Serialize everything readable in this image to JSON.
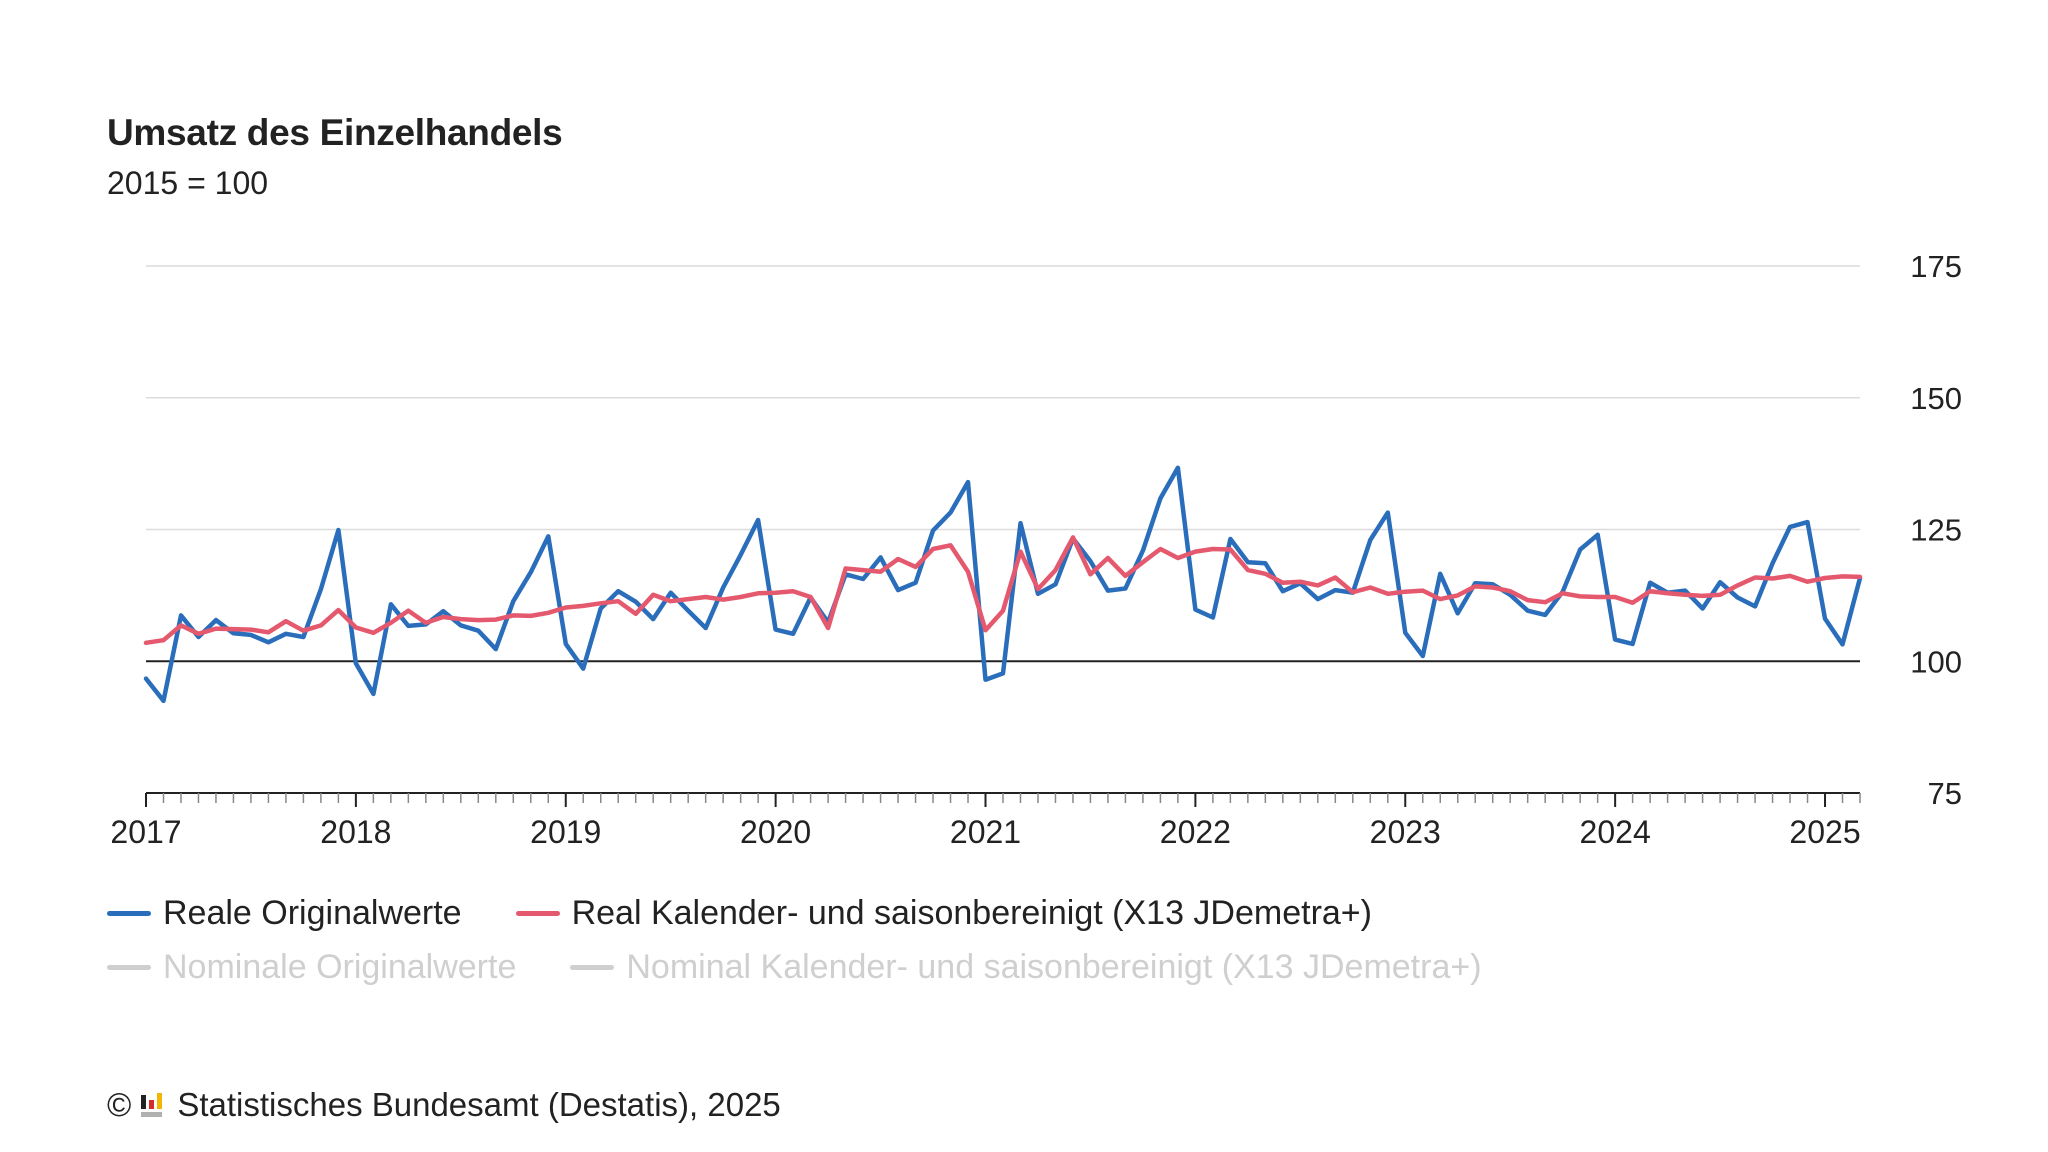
{
  "title": "Umsatz des Einzelhandels",
  "subtitle": "2015 = 100",
  "legend": {
    "items": [
      {
        "label": "Reale Originalwerte",
        "color": "#2a6ebb",
        "active": true
      },
      {
        "label": "Real Kalender- und saisonbereinigt (X13 JDemetra+)",
        "color": "#e5596e",
        "active": true
      },
      {
        "label": "Nominale Originalwerte",
        "color": "#cfcfcf",
        "active": false
      },
      {
        "label": "Nominal Kalender- und saisonbereinigt (X13 JDemetra+)",
        "color": "#cfcfcf",
        "active": false
      }
    ]
  },
  "footer": {
    "copyright": "©",
    "source": "Statistisches Bundesamt (Destatis), 2025",
    "logo_icon": "destatis-logo-icon"
  },
  "chart_data": {
    "type": "line",
    "x_start": "2017-01",
    "x_end": "2025-03",
    "frequency": "monthly",
    "x_tick_labels": [
      "2017",
      "2018",
      "2019",
      "2020",
      "2021",
      "2022",
      "2023",
      "2024",
      "2025"
    ],
    "ylim": [
      75,
      175
    ],
    "y_ticks": [
      75,
      100,
      125,
      150,
      175
    ],
    "baseline": 100,
    "grid": true,
    "series": [
      {
        "name": "Reale Originalwerte",
        "color": "#2a6ebb",
        "values": [
          96.7,
          92.5,
          108.7,
          104.6,
          107.8,
          105.3,
          105.0,
          103.6,
          105.2,
          104.6,
          113.7,
          124.9,
          99.6,
          93.8,
          110.8,
          106.7,
          107.0,
          109.5,
          106.8,
          105.8,
          102.3,
          111.4,
          116.9,
          123.7,
          103.3,
          98.6,
          110.0,
          113.3,
          111.3,
          108.0,
          113.0,
          109.6,
          106.3,
          114.0,
          120.2,
          126.8,
          106.0,
          105.2,
          112.1,
          107.4,
          116.5,
          115.6,
          119.7,
          113.5,
          114.9,
          124.8,
          128.2,
          134.0,
          96.5,
          97.7,
          126.2,
          112.8,
          114.6,
          123.3,
          119.0,
          113.4,
          113.8,
          121.0,
          130.9,
          136.7,
          109.8,
          108.3,
          123.2,
          118.8,
          118.6,
          113.3,
          114.8,
          111.8,
          113.5,
          113.0,
          123.0,
          128.2,
          105.4,
          101.0,
          116.6,
          109.1,
          114.8,
          114.6,
          112.6,
          109.6,
          108.8,
          113.2,
          121.2,
          124.0,
          104.1,
          103.3,
          114.9,
          113.0,
          113.4,
          110.0,
          115.0,
          112.1,
          110.4,
          118.6,
          125.5,
          126.4,
          108.1,
          103.2,
          115.8
        ]
      },
      {
        "name": "Real Kalender- und saisonbereinigt (X13 JDemetra+)",
        "color": "#e5596e",
        "values": [
          103.5,
          104.0,
          106.8,
          105.2,
          106.2,
          106.1,
          106.0,
          105.5,
          107.6,
          105.8,
          106.8,
          109.7,
          106.4,
          105.4,
          107.3,
          109.6,
          107.3,
          108.4,
          108.0,
          107.8,
          107.9,
          108.7,
          108.6,
          109.2,
          110.2,
          110.5,
          111.0,
          111.4,
          109.0,
          112.6,
          111.4,
          111.8,
          112.2,
          111.7,
          112.2,
          112.9,
          113.0,
          113.3,
          112.2,
          106.3,
          117.6,
          117.3,
          117.0,
          119.4,
          117.9,
          121.3,
          122.0,
          117.0,
          105.9,
          109.6,
          120.8,
          113.7,
          117.3,
          123.5,
          116.5,
          119.6,
          116.2,
          118.8,
          121.3,
          119.6,
          120.8,
          121.3,
          121.2,
          117.3,
          116.6,
          114.9,
          115.1,
          114.4,
          115.9,
          113.1,
          114.0,
          112.8,
          113.2,
          113.4,
          111.8,
          112.5,
          114.2,
          114.0,
          113.3,
          111.6,
          111.2,
          112.9,
          112.3,
          112.2,
          112.2,
          111.1,
          113.3,
          112.9,
          112.6,
          112.4,
          112.6,
          114.4,
          115.9,
          115.7,
          116.2,
          115.1,
          115.8,
          116.1,
          116.0
        ]
      }
    ]
  }
}
